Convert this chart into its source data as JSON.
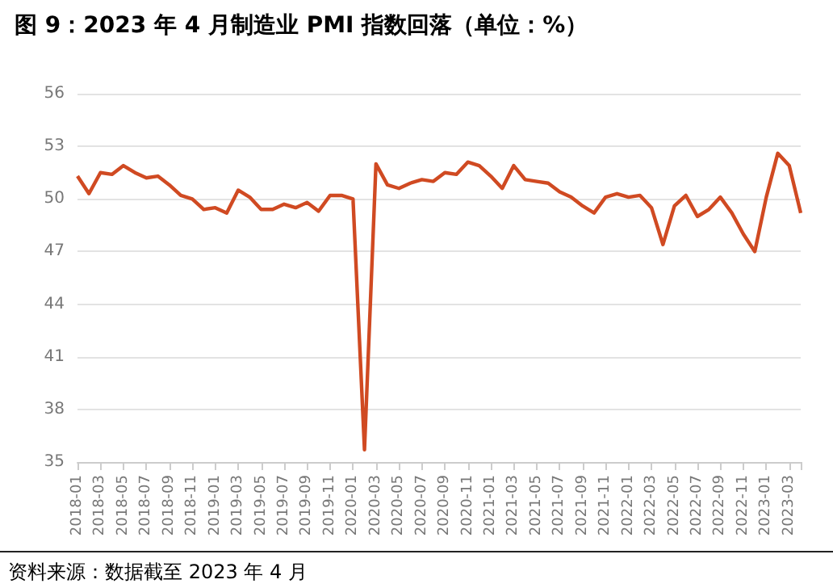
{
  "chart_data": {
    "type": "line",
    "title": "图 9：2023 年 4 月制造业 PMI 指数回落（单位：%）",
    "annotations": [
      "资料来源：数据截至 2023 年 4 月"
    ],
    "categories": [
      "2018-01",
      null,
      "2018-03",
      null,
      "2018-05",
      null,
      "2018-07",
      null,
      "2018-09",
      null,
      "2018-11",
      null,
      "2019-01",
      null,
      "2019-03",
      null,
      "2019-05",
      null,
      "2019-07",
      null,
      "2019-09",
      null,
      "2019-11",
      null,
      "2020-01",
      null,
      "2020-03",
      null,
      "2020-05",
      null,
      "2020-07",
      null,
      "2020-09",
      null,
      "2020-11",
      null,
      "2021-01",
      null,
      "2021-03",
      null,
      "2021-05",
      null,
      "2021-07",
      null,
      "2021-09",
      null,
      "2021-11",
      null,
      "2022-01",
      null,
      "2022-03",
      null,
      "2022-05",
      null,
      "2022-07",
      null,
      "2022-09",
      null,
      "2022-11",
      null,
      "2023-01",
      null,
      "2023-03",
      null
    ],
    "series": [
      {
        "color": "#d04a22",
        "values": [
          51.3,
          50.3,
          51.5,
          51.4,
          51.9,
          51.5,
          51.2,
          51.3,
          50.8,
          50.2,
          50.0,
          49.4,
          49.5,
          49.2,
          50.5,
          50.1,
          49.4,
          49.4,
          49.7,
          49.5,
          49.8,
          49.3,
          50.2,
          50.2,
          50.0,
          35.7,
          52.0,
          50.8,
          50.6,
          50.9,
          51.1,
          51.0,
          51.5,
          51.4,
          52.1,
          51.9,
          51.3,
          50.6,
          51.9,
          51.1,
          51.0,
          50.9,
          50.4,
          50.1,
          49.6,
          49.2,
          50.1,
          50.3,
          50.1,
          50.2,
          49.5,
          47.4,
          49.6,
          50.2,
          49.0,
          49.4,
          50.1,
          49.2,
          48.0,
          47.0,
          50.1,
          52.6,
          51.9,
          49.2
        ]
      }
    ],
    "ylim": [
      35,
      56
    ],
    "yticks": [
      35,
      38,
      41,
      44,
      47,
      50,
      53,
      56
    ],
    "grid": "y",
    "marker": "none",
    "line_style": "solid"
  }
}
